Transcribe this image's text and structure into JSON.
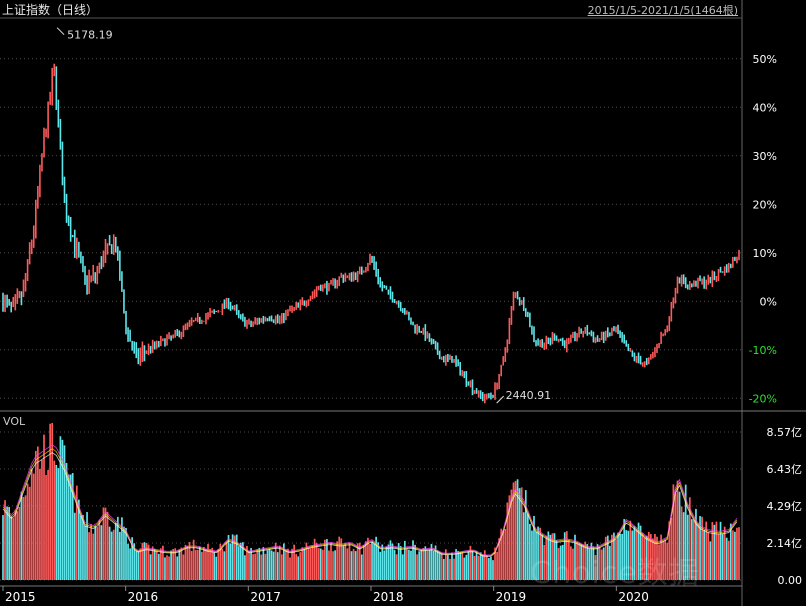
{
  "header": {
    "title": "上证指数（日线）",
    "range": "2015/1/5-2021/1/5(1464根)"
  },
  "volume_panel": {
    "label": "VOL"
  },
  "watermark": "Choice数据",
  "colors": {
    "up": "#ff5a5a",
    "down": "#5fe6ea",
    "axis_text": "#ffffff",
    "negative_pct": "#33dd33",
    "grid": "#4a4a4a"
  },
  "chart_data": [
    {
      "type": "line",
      "title": "上证指数（日线）",
      "y_unit": "percent change vs 2015/1/5",
      "x_ticks": [
        "2015",
        "2016",
        "2017",
        "2018",
        "2019",
        "2020"
      ],
      "y_ticks": [
        "50%",
        "40%",
        "30%",
        "20%",
        "10%",
        "0%",
        "-10%",
        "-20%"
      ],
      "ylim": [
        -22,
        58
      ],
      "annotations": [
        {
          "label": "5178.19",
          "x": "2015-06",
          "y": 56
        },
        {
          "label": "2440.91",
          "x": "2019-01",
          "y": -21
        }
      ],
      "x": [
        "2015-01",
        "2015-02",
        "2015-03",
        "2015-04",
        "2015-05",
        "2015-06",
        "2015-07",
        "2015-08",
        "2015-09",
        "2015-10",
        "2015-11",
        "2015-12",
        "2016-01",
        "2016-02",
        "2016-03",
        "2016-04",
        "2016-05",
        "2016-06",
        "2016-07",
        "2016-08",
        "2016-09",
        "2016-10",
        "2016-11",
        "2016-12",
        "2017-01",
        "2017-02",
        "2017-03",
        "2017-04",
        "2017-05",
        "2017-06",
        "2017-07",
        "2017-08",
        "2017-09",
        "2017-10",
        "2017-11",
        "2017-12",
        "2018-01",
        "2018-02",
        "2018-03",
        "2018-04",
        "2018-05",
        "2018-06",
        "2018-07",
        "2018-08",
        "2018-09",
        "2018-10",
        "2018-11",
        "2018-12",
        "2019-01",
        "2019-02",
        "2019-03",
        "2019-04",
        "2019-05",
        "2019-06",
        "2019-07",
        "2019-08",
        "2019-09",
        "2019-10",
        "2019-11",
        "2019-12",
        "2020-01",
        "2020-02",
        "2020-03",
        "2020-04",
        "2020-05",
        "2020-06",
        "2020-07",
        "2020-08",
        "2020-09",
        "2020-10",
        "2020-11",
        "2020-12",
        "2021-01"
      ],
      "series": [
        {
          "values": [
            0,
            -2,
            2,
            15,
            33,
            48,
            20,
            12,
            4,
            5,
            10,
            12,
            -5,
            -12,
            -10,
            -9,
            -8,
            -7,
            -5,
            -4,
            -3,
            -2,
            0,
            -3,
            -5,
            -4,
            -3,
            -4,
            -2,
            -1,
            1,
            3,
            3,
            5,
            5,
            6,
            9,
            3,
            1,
            -1,
            -5,
            -6,
            -9,
            -12,
            -12,
            -15,
            -18,
            -20,
            -19,
            -12,
            2,
            -1,
            -8,
            -9,
            -7,
            -9,
            -7,
            -6,
            -8,
            -7,
            -6,
            -10,
            -12,
            -13,
            -9,
            -5,
            5,
            3,
            4,
            4,
            6,
            7,
            10
          ]
        }
      ]
    },
    {
      "type": "bar",
      "title": "VOL",
      "y_ticks": [
        "8.57亿",
        "6.43亿",
        "4.29亿",
        "2.14亿",
        "0.00"
      ],
      "ylim": [
        0,
        8.57
      ],
      "x_ticks": [
        "2015",
        "2016",
        "2017",
        "2018",
        "2019",
        "2020"
      ],
      "series": [
        {
          "values": [
            4.2,
            3.5,
            5.2,
            6.8,
            7.2,
            7.6,
            6.5,
            4.8,
            3.2,
            3.0,
            3.8,
            3.3,
            2.8,
            1.6,
            1.8,
            1.7,
            1.6,
            1.6,
            1.9,
            1.9,
            1.7,
            1.6,
            2.3,
            2.1,
            1.6,
            1.7,
            1.8,
            1.9,
            1.6,
            1.7,
            1.9,
            2.0,
            2.1,
            2.0,
            2.1,
            1.8,
            2.3,
            1.8,
            1.9,
            1.8,
            1.9,
            1.7,
            1.8,
            1.5,
            1.5,
            1.6,
            1.7,
            1.4,
            1.4,
            2.9,
            5.2,
            4.4,
            2.9,
            2.5,
            2.2,
            2.3,
            2.2,
            1.9,
            1.8,
            2.1,
            2.4,
            3.4,
            2.9,
            2.4,
            2.1,
            2.4,
            5.9,
            4.2,
            3.1,
            2.8,
            2.7,
            2.8,
            3.6
          ]
        }
      ]
    }
  ]
}
